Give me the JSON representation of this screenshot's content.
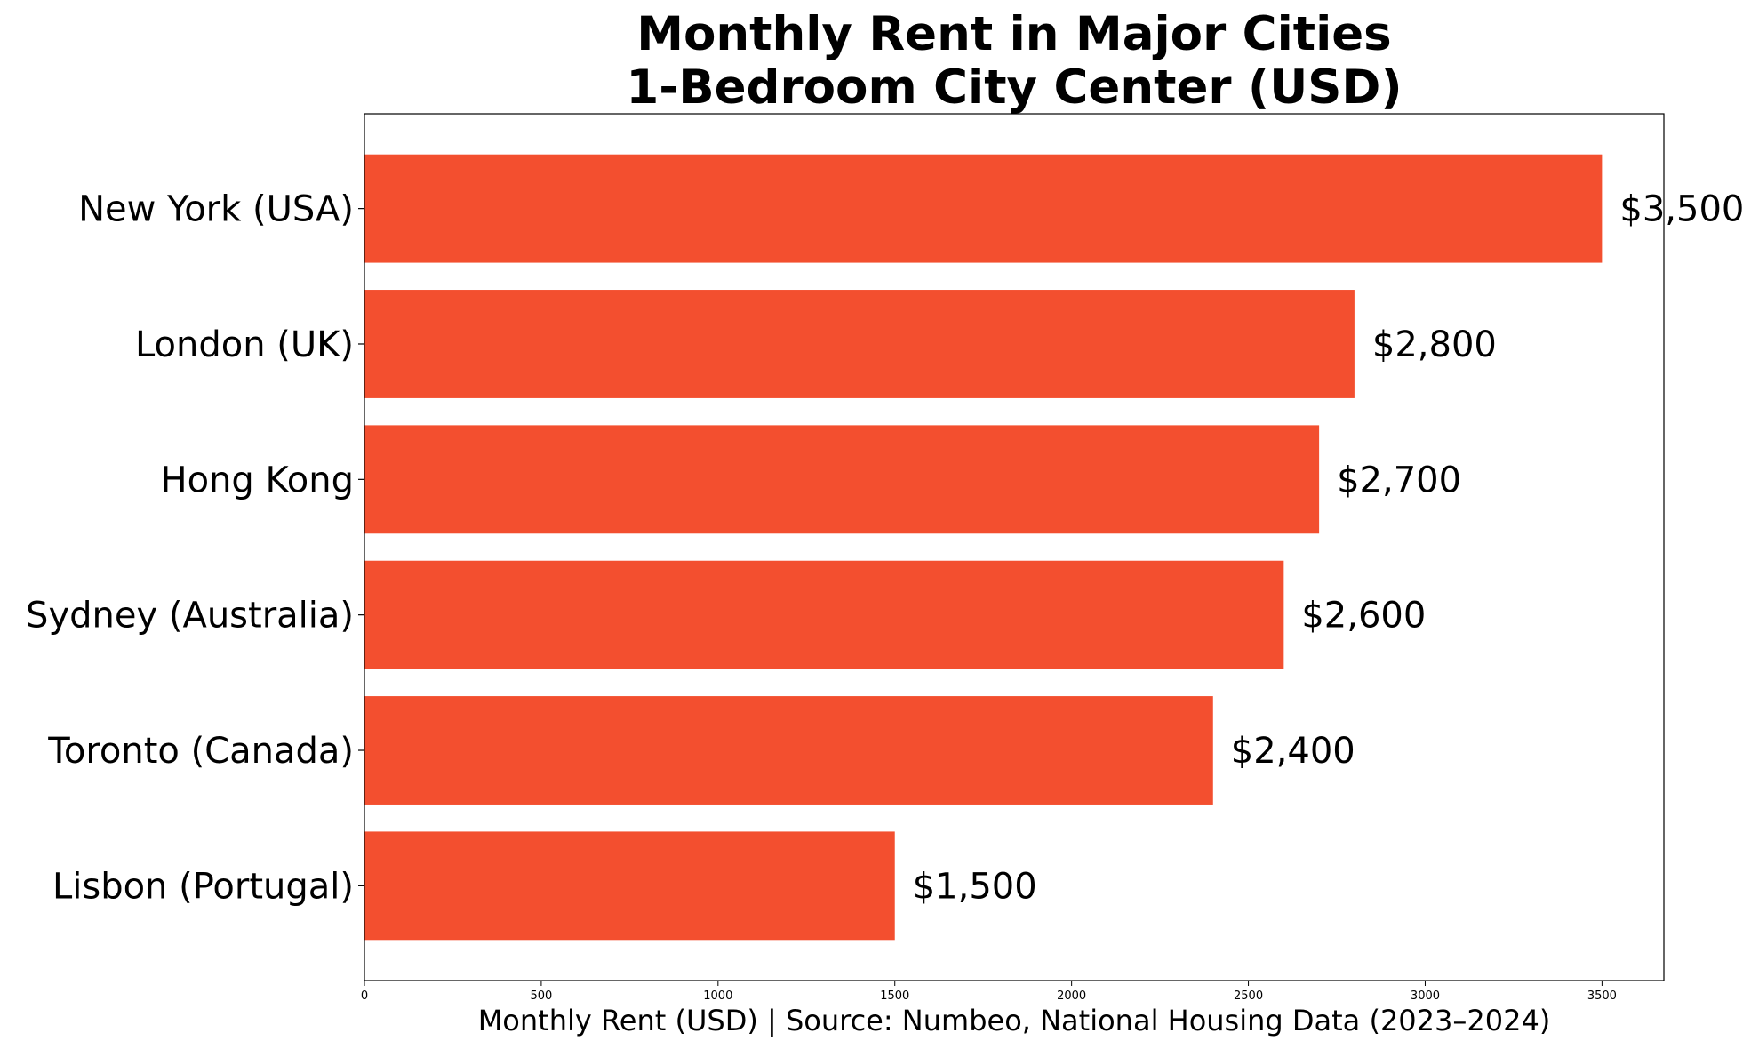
{
  "chart_data": {
    "type": "bar",
    "orientation": "horizontal",
    "title_lines": [
      "Monthly Rent in Major Cities",
      "1-Bedroom City Center (USD)"
    ],
    "categories": [
      "New York (USA)",
      "London (UK)",
      "Hong Kong",
      "Sydney (Australia)",
      "Toronto (Canada)",
      "Lisbon (Portugal)"
    ],
    "values": [
      3500,
      2800,
      2700,
      2600,
      2400,
      1500
    ],
    "data_labels": [
      "$3,500",
      "$2,800",
      "$2,700",
      "$2,600",
      "$2,400",
      "$1,500"
    ],
    "xlabel": "Monthly Rent (USD) | Source: Numbeo, National Housing Data (2023–2024)",
    "ylabel": "",
    "xlim": [
      0,
      3675
    ],
    "xticks": [
      0,
      500,
      1000,
      1500,
      2000,
      2500,
      3000,
      3500
    ],
    "grid": false,
    "bar_color": "#f34f2f"
  }
}
